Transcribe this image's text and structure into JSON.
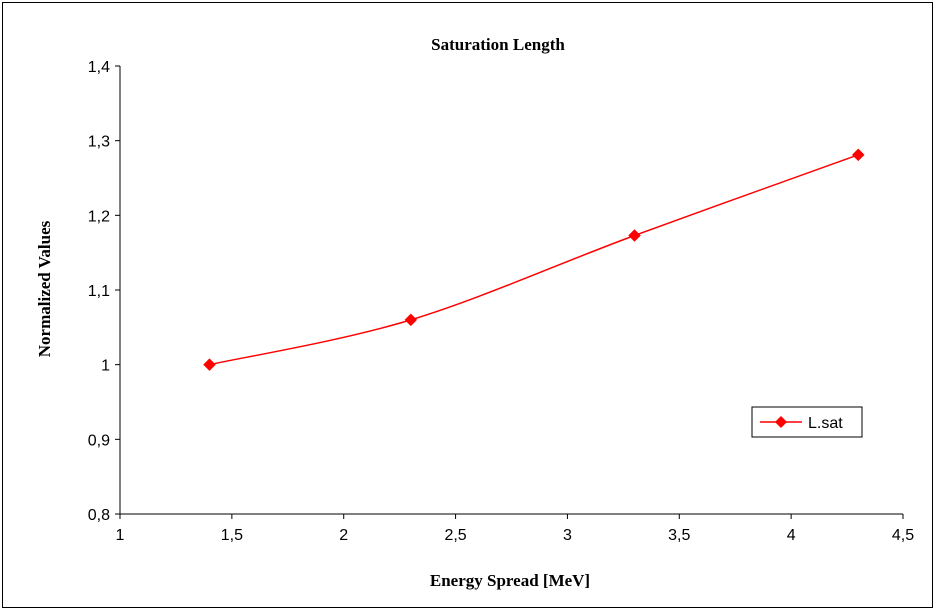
{
  "chart_data": {
    "type": "line",
    "title": "Saturation Length",
    "xlabel": "Energy Spread [MeV]",
    "ylabel": "Normalized Values",
    "xlim": [
      1,
      4.5
    ],
    "ylim": [
      0.8,
      1.4
    ],
    "x_ticks": [
      "1",
      "1,5",
      "2",
      "2,5",
      "3",
      "3,5",
      "4",
      "4,5"
    ],
    "y_ticks": [
      "0,8",
      "0,9",
      "1",
      "1,1",
      "1,2",
      "1,3",
      "1,4"
    ],
    "grid": false,
    "legend_position": "right",
    "series": [
      {
        "name": "L.sat",
        "color": "#ff0000",
        "marker": "diamond",
        "smooth": true,
        "x": [
          1.4,
          2.3,
          3.3,
          4.3
        ],
        "y": [
          1.0,
          1.06,
          1.173,
          1.281
        ]
      }
    ]
  }
}
